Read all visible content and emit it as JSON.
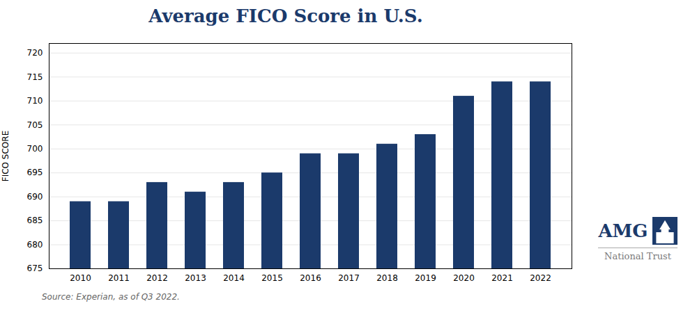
{
  "chart_data": {
    "type": "bar",
    "title": "Average FICO Score in U.S.",
    "y_label": "FICO SCORE",
    "annotations": [
      "Source: Experian, as of Q3 2022.",
      "AMG",
      "National Trust"
    ],
    "categories": [
      "2010",
      "2011",
      "2012",
      "2013",
      "2014",
      "2015",
      "2016",
      "2017",
      "2018",
      "2019",
      "2020",
      "2021",
      "2022"
    ],
    "values": [
      689,
      689,
      693,
      691,
      693,
      695,
      699,
      699,
      701,
      703,
      711,
      714,
      714
    ],
    "color": "#1b3a6b",
    "ylim": [
      675,
      722
    ],
    "yticks": [
      675,
      680,
      685,
      690,
      695,
      700,
      705,
      710,
      715,
      720
    ],
    "grid": true
  }
}
